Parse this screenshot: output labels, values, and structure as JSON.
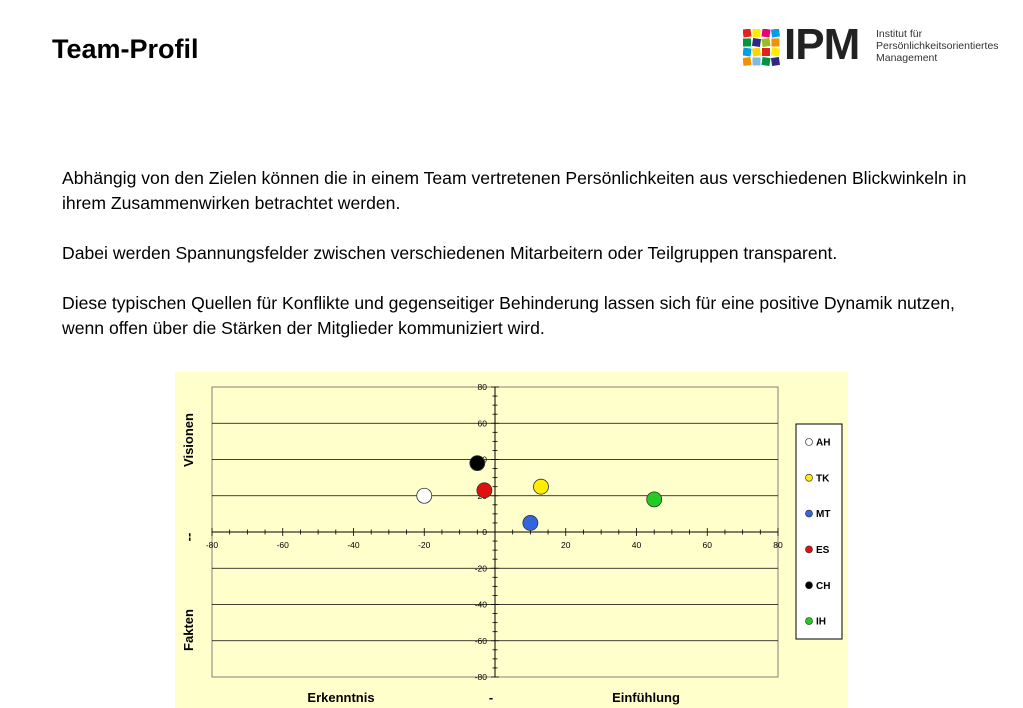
{
  "header": {
    "title": "Team-Profil"
  },
  "logo": {
    "name": "IPM",
    "subtitle_lines": [
      "Institut für",
      "Persönlichkeitsorientiertes",
      "Management"
    ],
    "mosaic_colors": [
      "#e2231a",
      "#f39200",
      "#ffd500",
      "#95c11f",
      "#009fe3",
      "#312783",
      "#e6007e",
      "#00963f",
      "#ffed00",
      "#7fb9e6"
    ]
  },
  "paragraphs": [
    "Abhängig von den Zielen können die in einem Team vertretenen Persönlichkeiten aus verschiedenen Blickwinkeln in ihrem Zusammenwirken betrachtet werden.",
    "Dabei werden Spannungsfelder zwischen verschiedenen Mitarbeitern oder Teilgruppen transparent.",
    "Diese typischen Quellen für Konflikte und gegenseitiger Behinderung lassen sich für eine positive Dynamik nutzen, wenn offen über die Stärken der Mitglieder kommuniziert wird."
  ],
  "chart_data": {
    "type": "scatter",
    "xlim": [
      -80,
      80
    ],
    "ylim": [
      -80,
      80
    ],
    "x_ticks": [
      -80,
      -60,
      -40,
      -20,
      0,
      20,
      40,
      60,
      80
    ],
    "y_ticks": [
      80,
      60,
      40,
      20,
      0,
      -20,
      -40,
      -60,
      -80
    ],
    "grid": "horizontal",
    "legend_position": "right",
    "background_color": "#ffffcc",
    "plot_background_color": "#ffffcc",
    "x_axis_labels": {
      "left": "Erkenntnis",
      "center": "-",
      "right": "Einfühlung"
    },
    "y_axis_labels": {
      "top": "Visionen",
      "center": "--",
      "bottom": "Fakten"
    },
    "series": [
      {
        "name": "AH",
        "x": -20,
        "y": 20,
        "color": "#ffffff"
      },
      {
        "name": "TK",
        "x": 13,
        "y": 25,
        "color": "#ffee00"
      },
      {
        "name": "MT",
        "x": 10,
        "y": 5,
        "color": "#3366dd"
      },
      {
        "name": "ES",
        "x": -3,
        "y": 23,
        "color": "#e01010"
      },
      {
        "name": "CH",
        "x": -5,
        "y": 38,
        "color": "#000000"
      },
      {
        "name": "IH",
        "x": 45,
        "y": 18,
        "color": "#22cc22"
      }
    ]
  }
}
